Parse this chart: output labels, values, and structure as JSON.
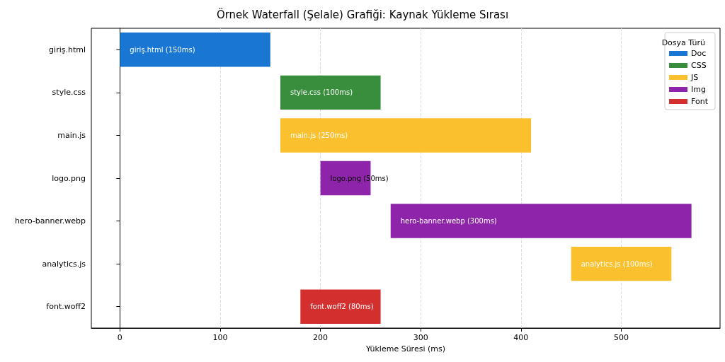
{
  "chart_data": {
    "type": "bar",
    "orientation": "horizontal",
    "title": "Örnek Waterfall (Şelale) Grafiği: Kaynak Yükleme Sırası",
    "xlabel": "Yükleme Süresi (ms)",
    "legend_title": "Dosya Türü",
    "legend": "top right",
    "grid": "x",
    "categories": [
      "giriş.html",
      "style.css",
      "main.js",
      "logo.png",
      "hero-banner.webp",
      "analytics.js",
      "font.woff2"
    ],
    "xlim": [
      -28.5,
      598.5
    ],
    "xticks": [
      0,
      100,
      200,
      300,
      400,
      500
    ],
    "series": [
      {
        "name": "Doc",
        "color": "#1976d2",
        "values": [
          150,
          null,
          null,
          null,
          null,
          null,
          null
        ],
        "base": [
          0,
          null,
          null,
          null,
          null,
          null,
          null
        ],
        "value_labels": [
          "giriş.html (150ms)",
          null,
          null,
          null,
          null,
          null,
          null
        ]
      },
      {
        "name": "CSS",
        "color": "#388e3c",
        "values": [
          null,
          100,
          null,
          null,
          null,
          null,
          null
        ],
        "base": [
          null,
          160,
          null,
          null,
          null,
          null,
          null
        ],
        "value_labels": [
          null,
          "style.css (100ms)",
          null,
          null,
          null,
          null,
          null
        ]
      },
      {
        "name": "JS",
        "color": "#fbc02d",
        "values": [
          null,
          null,
          250,
          null,
          null,
          100,
          null
        ],
        "base": [
          null,
          null,
          160,
          null,
          null,
          450,
          null
        ],
        "value_labels": [
          null,
          null,
          "main.js (250ms)",
          null,
          null,
          "analytics.js (100ms)",
          null
        ]
      },
      {
        "name": "Img",
        "color": "#8e24aa",
        "values": [
          null,
          null,
          null,
          50,
          300,
          null,
          null
        ],
        "base": [
          null,
          null,
          null,
          200,
          270,
          null,
          null
        ],
        "value_labels": [
          null,
          null,
          null,
          "logo.png (50ms)",
          "hero-banner.webp (300ms)",
          null,
          null
        ]
      },
      {
        "name": "Font",
        "color": "#d32f2f",
        "values": [
          null,
          null,
          null,
          null,
          null,
          null,
          80
        ],
        "base": [
          null,
          null,
          null,
          null,
          null,
          null,
          180
        ],
        "value_labels": [
          null,
          null,
          null,
          null,
          null,
          null,
          "font.woff2 (80ms)"
        ]
      }
    ]
  }
}
